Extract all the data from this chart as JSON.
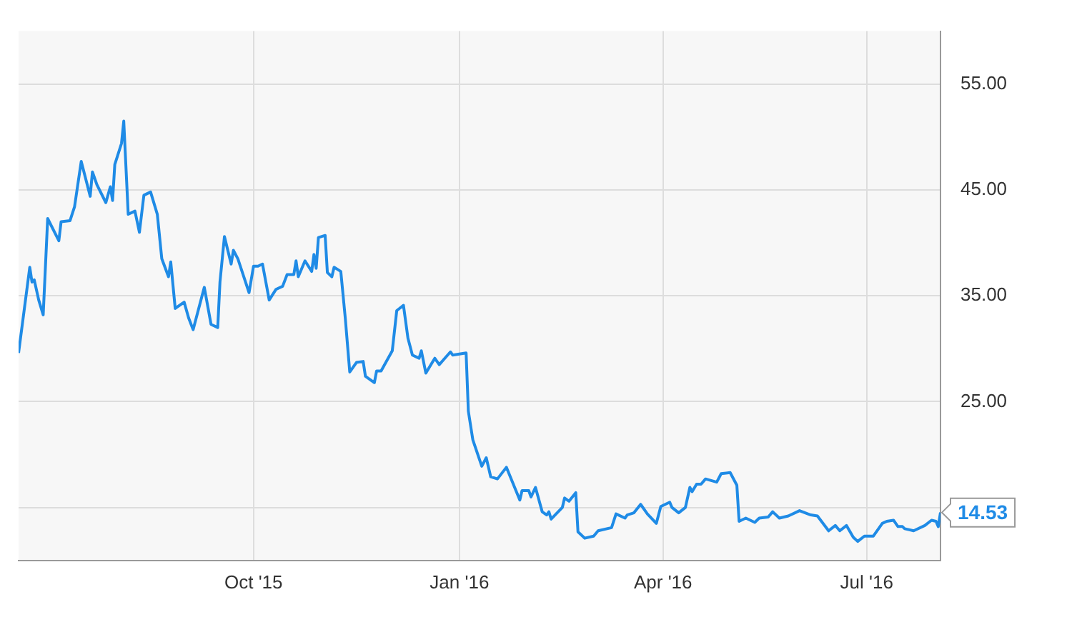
{
  "chart_data": {
    "type": "line",
    "x": [
      "2015-06-18",
      "2015-06-23",
      "2015-06-24",
      "2015-06-25",
      "2015-06-27",
      "2015-06-29",
      "2015-07-01",
      "2015-07-06",
      "2015-07-07",
      "2015-07-11",
      "2015-07-13",
      "2015-07-16",
      "2015-07-20",
      "2015-07-21",
      "2015-07-23",
      "2015-07-27",
      "2015-07-29",
      "2015-07-30",
      "2015-07-31",
      "2015-08-03",
      "2015-08-04",
      "2015-08-06",
      "2015-08-09",
      "2015-08-11",
      "2015-08-13",
      "2015-08-16",
      "2015-08-19",
      "2015-08-21",
      "2015-08-24",
      "2015-08-25",
      "2015-08-27",
      "2015-08-31",
      "2015-09-02",
      "2015-09-04",
      "2015-09-09",
      "2015-09-12",
      "2015-09-15",
      "2015-09-16",
      "2015-09-18",
      "2015-09-21",
      "2015-09-22",
      "2015-09-24",
      "2015-09-29",
      "2015-10-01",
      "2015-10-03",
      "2015-10-05",
      "2015-10-08",
      "2015-10-11",
      "2015-10-14",
      "2015-10-16",
      "2015-10-19",
      "2015-10-20",
      "2015-10-21",
      "2015-10-24",
      "2015-10-27",
      "2015-10-28",
      "2015-10-29",
      "2015-10-30",
      "2015-11-02",
      "2015-11-03",
      "2015-11-05",
      "2015-11-06",
      "2015-11-09",
      "2015-11-11",
      "2015-11-13",
      "2015-11-16",
      "2015-11-19",
      "2015-11-20",
      "2015-11-24",
      "2015-11-25",
      "2015-11-27",
      "2015-12-02",
      "2015-12-04",
      "2015-12-07",
      "2015-12-09",
      "2015-12-11",
      "2015-12-14",
      "2015-12-15",
      "2015-12-17",
      "2015-12-21",
      "2015-12-23",
      "2015-12-28",
      "2015-12-29",
      "2016-01-04",
      "2016-01-05",
      "2016-01-07",
      "2016-01-11",
      "2016-01-13",
      "2016-01-15",
      "2016-01-18",
      "2016-01-22",
      "2016-01-28",
      "2016-01-29",
      "2016-02-01",
      "2016-02-02",
      "2016-02-04",
      "2016-02-07",
      "2016-02-09",
      "2016-02-10",
      "2016-02-11",
      "2016-02-16",
      "2016-02-17",
      "2016-02-19",
      "2016-02-22",
      "2016-02-23",
      "2016-02-26",
      "2016-03-01",
      "2016-03-03",
      "2016-03-09",
      "2016-03-11",
      "2016-03-15",
      "2016-03-16",
      "2016-03-19",
      "2016-03-22",
      "2016-03-25",
      "2016-03-29",
      "2016-03-31",
      "2016-04-04",
      "2016-04-05",
      "2016-04-08",
      "2016-04-11",
      "2016-04-13",
      "2016-04-14",
      "2016-04-16",
      "2016-04-18",
      "2016-04-20",
      "2016-04-25",
      "2016-04-27",
      "2016-05-01",
      "2016-05-04",
      "2016-05-05",
      "2016-05-08",
      "2016-05-12",
      "2016-05-14",
      "2016-05-18",
      "2016-05-20",
      "2016-05-23",
      "2016-05-27",
      "2016-06-01",
      "2016-06-06",
      "2016-06-09",
      "2016-06-14",
      "2016-06-17",
      "2016-06-19",
      "2016-06-22",
      "2016-06-25",
      "2016-06-27",
      "2016-06-30",
      "2016-07-04",
      "2016-07-08",
      "2016-07-10",
      "2016-07-13",
      "2016-07-15",
      "2016-07-17",
      "2016-07-18",
      "2016-07-22",
      "2016-07-27",
      "2016-07-30",
      "2016-08-01",
      "2016-08-02",
      "2016-08-03"
    ],
    "series": [
      {
        "color": "#1f8be6",
        "values": [
          29.6,
          37.7,
          36.3,
          36.5,
          34.6,
          33.2,
          42.3,
          40.2,
          42.0,
          42.1,
          43.4,
          47.7,
          44.4,
          46.7,
          45.5,
          43.8,
          45.3,
          44.0,
          47.4,
          49.4,
          51.5,
          42.7,
          43.0,
          41.0,
          44.5,
          44.8,
          42.7,
          38.5,
          36.8,
          38.2,
          33.8,
          34.4,
          32.9,
          31.8,
          35.8,
          32.3,
          32.0,
          36.3,
          40.6,
          38.0,
          39.3,
          38.5,
          35.3,
          37.8,
          37.8,
          38.0,
          34.6,
          35.6,
          35.9,
          37.0,
          37.0,
          38.3,
          36.8,
          38.3,
          37.3,
          38.9,
          37.6,
          40.5,
          40.7,
          37.2,
          36.8,
          37.7,
          37.3,
          32.9,
          27.8,
          28.7,
          28.8,
          27.4,
          26.8,
          27.9,
          27.9,
          29.8,
          33.6,
          34.1,
          31.0,
          29.4,
          29.1,
          29.8,
          27.7,
          29.1,
          28.5,
          29.7,
          29.4,
          29.6,
          24.1,
          21.4,
          18.9,
          19.7,
          17.9,
          17.7,
          18.8,
          15.7,
          16.6,
          16.6,
          16.0,
          16.9,
          14.6,
          14.3,
          14.6,
          13.9,
          15.0,
          15.9,
          15.6,
          16.4,
          12.7,
          12.1,
          12.3,
          12.8,
          13.1,
          14.4,
          14.0,
          14.3,
          14.5,
          15.3,
          14.4,
          13.5,
          15.1,
          15.5,
          15.0,
          14.5,
          15.0,
          16.9,
          16.5,
          17.2,
          17.2,
          17.7,
          17.4,
          18.2,
          18.3,
          17.1,
          13.7,
          14.0,
          13.6,
          14.0,
          14.1,
          14.6,
          14.0,
          14.2,
          14.7,
          14.3,
          14.2,
          12.8,
          13.3,
          12.8,
          13.3,
          12.2,
          11.8,
          12.3,
          12.3,
          13.5,
          13.7,
          13.8,
          13.2,
          13.2,
          13.0,
          12.8,
          13.3,
          13.8,
          13.7,
          13.2,
          14.53
        ],
        "value_labels": [
          null,
          null,
          null,
          null,
          null,
          null,
          null,
          null,
          null,
          null,
          null,
          null,
          null,
          null,
          null,
          null,
          null,
          null,
          null,
          null,
          null,
          null,
          null,
          null,
          null,
          null,
          null,
          null,
          null,
          null,
          null,
          null,
          null,
          null,
          null,
          null,
          null,
          null,
          null,
          null,
          null,
          null,
          null,
          null,
          null,
          null,
          null,
          null,
          null,
          null,
          null,
          null,
          null,
          null,
          null,
          null,
          null,
          null,
          null,
          null,
          null,
          null,
          null,
          null,
          null,
          null,
          null,
          null,
          null,
          null,
          null,
          null,
          null,
          null,
          null,
          null,
          null,
          null,
          null,
          null,
          null,
          null,
          null,
          null,
          null,
          null,
          null,
          null,
          null,
          null,
          null,
          null,
          null,
          null,
          null,
          null,
          null,
          null,
          null,
          null,
          null,
          null,
          null,
          null,
          null,
          null,
          null,
          null,
          null,
          null,
          null,
          null,
          null,
          null,
          null,
          null,
          null,
          null,
          null,
          null,
          null,
          null,
          null,
          null,
          null,
          null,
          null,
          null,
          null,
          null,
          null,
          null,
          null,
          null,
          null,
          null,
          null,
          null,
          null,
          null,
          null,
          null,
          null,
          null,
          null,
          null,
          null,
          null,
          null,
          null,
          null,
          null,
          null,
          null,
          null,
          null,
          null,
          null,
          null,
          null,
          "14.53"
        ]
      }
    ],
    "xlim": [
      "2015-06-18",
      "2016-08-03"
    ],
    "xticks": [
      {
        "value": "2015-10-01",
        "label": "Oct '15"
      },
      {
        "value": "2016-01-01",
        "label": "Jan '16"
      },
      {
        "value": "2016-04-01",
        "label": "Apr '16"
      },
      {
        "value": "2016-07-01",
        "label": "Jul '16"
      }
    ],
    "ylim": [
      10,
      60
    ],
    "yticks": [
      {
        "value": 15,
        "label": null
      },
      {
        "value": 25,
        "label": "25.00"
      },
      {
        "value": 35,
        "label": "35.00"
      },
      {
        "value": 45,
        "label": "45.00"
      },
      {
        "value": 55,
        "label": "55.00"
      }
    ],
    "grid": true,
    "legend": false,
    "marker": "none",
    "line_style": "solid"
  }
}
